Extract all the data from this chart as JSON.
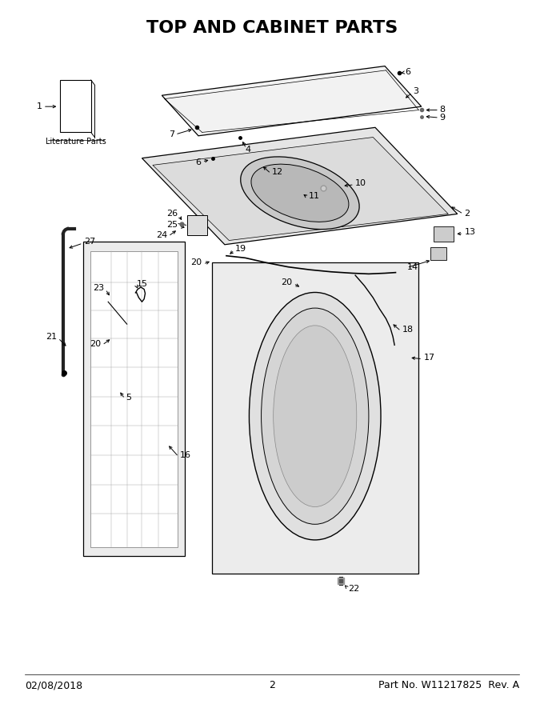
{
  "title": "TOP AND CABINET PARTS",
  "title_fontsize": 16,
  "title_fontweight": "bold",
  "background_color": "#ffffff",
  "footer_left": "02/08/2018",
  "footer_center": "2",
  "footer_right": "Part No. W11217825  Rev. A",
  "footer_fontsize": 9,
  "literature_parts_label": "Literature Parts",
  "label_fontsize": 8
}
